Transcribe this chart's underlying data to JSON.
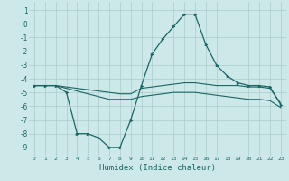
{
  "xlabel": "Humidex (Indice chaleur)",
  "background_color": "#cce8e8",
  "grid_color": "#aacccc",
  "line_color": "#1a6666",
  "xlim": [
    -0.5,
    23.5
  ],
  "ylim": [
    -9.6,
    1.6
  ],
  "yticks": [
    1,
    0,
    -1,
    -2,
    -3,
    -4,
    -5,
    -6,
    -7,
    -8,
    -9
  ],
  "xticks": [
    0,
    1,
    2,
    3,
    4,
    5,
    6,
    7,
    8,
    9,
    10,
    11,
    12,
    13,
    14,
    15,
    16,
    17,
    18,
    19,
    20,
    21,
    22,
    23
  ],
  "series1_x": [
    0,
    1,
    2,
    3,
    4,
    5,
    6,
    7,
    8,
    9,
    10,
    11,
    12,
    13,
    14,
    15,
    16,
    17,
    18,
    19,
    20,
    21,
    22,
    23
  ],
  "series1_y": [
    -4.5,
    -4.5,
    -4.5,
    -5.0,
    -8.0,
    -8.0,
    -8.3,
    -9.0,
    -9.0,
    -7.0,
    -4.5,
    -2.2,
    -1.1,
    -0.2,
    0.7,
    0.7,
    -1.5,
    -3.0,
    -3.8,
    -4.3,
    -4.5,
    -4.5,
    -4.6,
    -5.9
  ],
  "series2_x": [
    0,
    1,
    2,
    3,
    4,
    5,
    6,
    7,
    8,
    9,
    10,
    11,
    12,
    13,
    14,
    15,
    16,
    17,
    18,
    19,
    20,
    21,
    22,
    23
  ],
  "series2_y": [
    -4.5,
    -4.5,
    -4.5,
    -4.6,
    -4.7,
    -4.8,
    -4.9,
    -5.0,
    -5.1,
    -5.1,
    -4.7,
    -4.6,
    -4.5,
    -4.4,
    -4.3,
    -4.3,
    -4.4,
    -4.5,
    -4.5,
    -4.5,
    -4.6,
    -4.6,
    -4.7,
    -5.8
  ],
  "series3_x": [
    0,
    1,
    2,
    3,
    4,
    5,
    6,
    7,
    8,
    9,
    10,
    11,
    12,
    13,
    14,
    15,
    16,
    17,
    18,
    19,
    20,
    21,
    22,
    23
  ],
  "series3_y": [
    -4.5,
    -4.5,
    -4.5,
    -4.7,
    -4.9,
    -5.1,
    -5.3,
    -5.5,
    -5.5,
    -5.5,
    -5.3,
    -5.2,
    -5.1,
    -5.0,
    -5.0,
    -5.0,
    -5.1,
    -5.2,
    -5.3,
    -5.4,
    -5.5,
    -5.5,
    -5.6,
    -6.1
  ]
}
